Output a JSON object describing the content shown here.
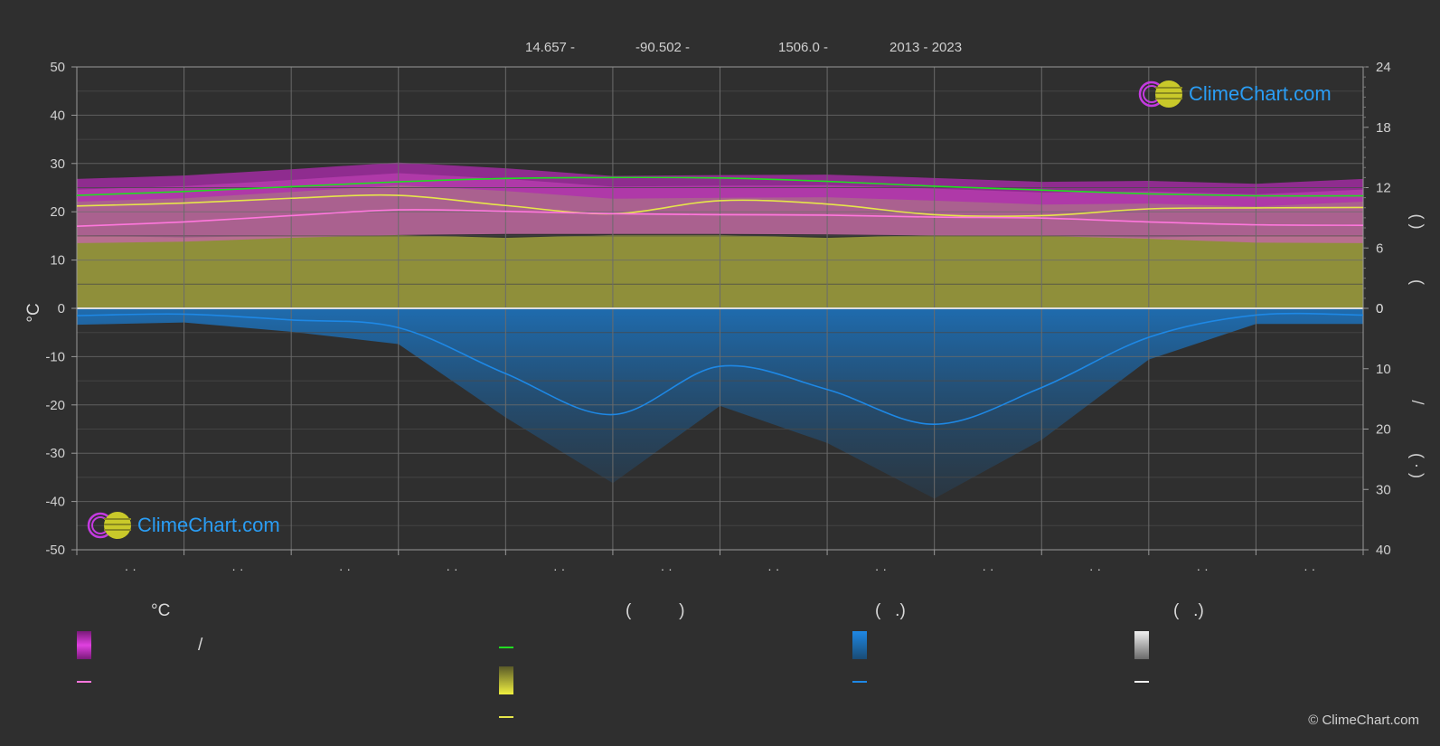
{
  "header": {
    "lat": "14.657 -",
    "lon": "-90.502 -",
    "elev": "1506.0 -",
    "years": "2013 - 2023"
  },
  "logo_text": "ClimeChart.com",
  "copyright": "© ClimeChart.com",
  "legend": {
    "temp_head": "°C",
    "sun_head": "(          )",
    "rain_head": "(   .)",
    "snow_head": "(   .)",
    "slash": "/"
  },
  "colors": {
    "bg": "#2f2f2f",
    "daylight": "#22dd22",
    "sunshine": "#e6e64a",
    "max_temp": "#e6e64a",
    "mean_temp": "#ff77dd",
    "rain": "#1e88e5",
    "grid": "#5a5a5a"
  },
  "chart_data": {
    "type": "line",
    "y_left": {
      "label": "°C",
      "ylim": [
        -50,
        50
      ],
      "ticks": [
        50,
        40,
        30,
        20,
        10,
        0,
        -10,
        -20,
        -30,
        -40,
        -50
      ]
    },
    "y_right_top": {
      "ticks": [
        24,
        18,
        12,
        6,
        0
      ]
    },
    "y_right_bottom": {
      "ticks": [
        0,
        10,
        20,
        30,
        40
      ]
    },
    "months": 12,
    "x_tick_labels": [
      "· ·",
      "· ·",
      "· ·",
      "· ·",
      "· ·",
      "· ·",
      "· ·",
      "· ·",
      "· ·",
      "· ·",
      "· ·",
      "· ·"
    ],
    "right_axis_marks": [
      "(   )",
      "(",
      "/",
      "(   ·   )"
    ],
    "series": [
      {
        "key": "daylight",
        "points": [
          [
            0,
            23.4
          ],
          [
            1,
            24.2
          ],
          [
            2,
            25.2
          ],
          [
            3,
            26.2
          ],
          [
            4,
            26.9
          ],
          [
            5,
            27.1
          ],
          [
            6,
            27.0
          ],
          [
            7,
            26.3
          ],
          [
            8,
            25.3
          ],
          [
            9,
            24.5
          ],
          [
            10,
            23.7
          ],
          [
            11,
            23.3
          ],
          [
            12,
            23.3
          ]
        ]
      },
      {
        "key": "sunshine_line",
        "points": [
          [
            0,
            21.2
          ],
          [
            1,
            21.8
          ],
          [
            2,
            22.8
          ],
          [
            3,
            23.4
          ],
          [
            4,
            21.3
          ],
          [
            5,
            19.6
          ],
          [
            6,
            22.3
          ],
          [
            7,
            21.6
          ],
          [
            8,
            19.4
          ],
          [
            9,
            19.2
          ],
          [
            10,
            20.6
          ],
          [
            11,
            20.8
          ],
          [
            12,
            20.9
          ]
        ]
      },
      {
        "key": "mean_temp",
        "points": [
          [
            0,
            17.0
          ],
          [
            1,
            17.9
          ],
          [
            2,
            19.2
          ],
          [
            3,
            20.4
          ],
          [
            4,
            20.1
          ],
          [
            5,
            19.6
          ],
          [
            6,
            19.4
          ],
          [
            7,
            19.3
          ],
          [
            8,
            18.9
          ],
          [
            9,
            18.7
          ],
          [
            10,
            17.9
          ],
          [
            11,
            17.3
          ],
          [
            12,
            17.2
          ]
        ]
      },
      {
        "key": "rain",
        "points": [
          [
            0,
            -1.5
          ],
          [
            1,
            -1.2
          ],
          [
            2,
            -2.4
          ],
          [
            3,
            -4.0
          ],
          [
            4,
            -13.5
          ],
          [
            5,
            -22.0
          ],
          [
            6,
            -12.0
          ],
          [
            7,
            -16.8
          ],
          [
            8,
            -24.0
          ],
          [
            9,
            -16.4
          ],
          [
            10,
            -6.0
          ],
          [
            11,
            -1.4
          ],
          [
            12,
            -1.4
          ]
        ]
      }
    ]
  }
}
